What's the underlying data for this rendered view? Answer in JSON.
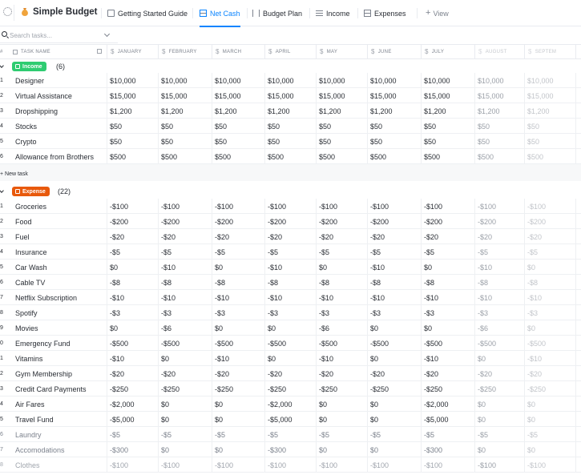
{
  "app": {
    "title": "Simple Budget"
  },
  "tabs": [
    {
      "label": "Getting Started Guide",
      "icon": "doc-icon"
    },
    {
      "label": "Net Cash",
      "icon": "table-icon",
      "active": true
    },
    {
      "label": "Budget Plan",
      "icon": "board-icon"
    },
    {
      "label": "Income",
      "icon": "list-icon"
    },
    {
      "label": "Expenses",
      "icon": "table-icon"
    }
  ],
  "view_button": {
    "label": "View"
  },
  "search": {
    "placeholder": "Search tasks..."
  },
  "columns": {
    "name_header": "TASK NAME",
    "months": [
      "JANUARY",
      "FEBRUARY",
      "MARCH",
      "APRIL",
      "MAY",
      "JUNE",
      "JULY",
      "AUGUST",
      "SEPTEM"
    ]
  },
  "colors": {
    "accent": "#0a84ff",
    "income_badge": "#2ecc71",
    "expense_badge": "#e8590c"
  },
  "income": {
    "label": "Income",
    "count": "(6)",
    "new_task": "+ New task",
    "rows": [
      {
        "n": "1",
        "name": "Designer",
        "vals": [
          "$10,000",
          "$10,000",
          "$10,000",
          "$10,000",
          "$10,000",
          "$10,000",
          "$10,000",
          "$10,000",
          "$10,000"
        ]
      },
      {
        "n": "2",
        "name": "Virtual Assistance",
        "vals": [
          "$15,000",
          "$15,000",
          "$15,000",
          "$15,000",
          "$15,000",
          "$15,000",
          "$15,000",
          "$15,000",
          "$15,000"
        ]
      },
      {
        "n": "3",
        "name": "Dropshipping",
        "vals": [
          "$1,200",
          "$1,200",
          "$1,200",
          "$1,200",
          "$1,200",
          "$1,200",
          "$1,200",
          "$1,200",
          "$1,200"
        ]
      },
      {
        "n": "4",
        "name": "Stocks",
        "vals": [
          "$50",
          "$50",
          "$50",
          "$50",
          "$50",
          "$50",
          "$50",
          "$50",
          "$50"
        ]
      },
      {
        "n": "5",
        "name": "Crypto",
        "vals": [
          "$50",
          "$50",
          "$50",
          "$50",
          "$50",
          "$50",
          "$50",
          "$50",
          "$50"
        ]
      },
      {
        "n": "6",
        "name": "Allowance from Brothers",
        "vals": [
          "$500",
          "$500",
          "$500",
          "$500",
          "$500",
          "$500",
          "$500",
          "$500",
          "$500"
        ]
      }
    ]
  },
  "expense": {
    "label": "Expense",
    "count": "(22)",
    "rows": [
      {
        "n": "1",
        "name": "Groceries",
        "vals": [
          "-$100",
          "-$100",
          "-$100",
          "-$100",
          "-$100",
          "-$100",
          "-$100",
          "-$100",
          "-$100"
        ]
      },
      {
        "n": "2",
        "name": "Food",
        "vals": [
          "-$200",
          "-$200",
          "-$200",
          "-$200",
          "-$200",
          "-$200",
          "-$200",
          "-$200",
          "-$200"
        ]
      },
      {
        "n": "3",
        "name": "Fuel",
        "vals": [
          "-$20",
          "-$20",
          "-$20",
          "-$20",
          "-$20",
          "-$20",
          "-$20",
          "-$20",
          "-$20"
        ]
      },
      {
        "n": "4",
        "name": "Insurance",
        "vals": [
          "-$5",
          "-$5",
          "-$5",
          "-$5",
          "-$5",
          "-$5",
          "-$5",
          "-$5",
          "-$5"
        ]
      },
      {
        "n": "5",
        "name": "Car Wash",
        "vals": [
          "$0",
          "-$10",
          "$0",
          "-$10",
          "$0",
          "-$10",
          "$0",
          "-$10",
          "$0"
        ]
      },
      {
        "n": "6",
        "name": "Cable TV",
        "vals": [
          "-$8",
          "-$8",
          "-$8",
          "-$8",
          "-$8",
          "-$8",
          "-$8",
          "-$8",
          "-$8"
        ]
      },
      {
        "n": "7",
        "name": "Netflix Subscription",
        "vals": [
          "-$10",
          "-$10",
          "-$10",
          "-$10",
          "-$10",
          "-$10",
          "-$10",
          "-$10",
          "-$10"
        ]
      },
      {
        "n": "8",
        "name": "Spotify",
        "vals": [
          "-$3",
          "-$3",
          "-$3",
          "-$3",
          "-$3",
          "-$3",
          "-$3",
          "-$3",
          "-$3"
        ]
      },
      {
        "n": "9",
        "name": "Movies",
        "vals": [
          "$0",
          "-$6",
          "$0",
          "$0",
          "-$6",
          "$0",
          "$0",
          "-$6",
          "$0"
        ]
      },
      {
        "n": "0",
        "name": "Emergency Fund",
        "vals": [
          "-$500",
          "-$500",
          "-$500",
          "-$500",
          "-$500",
          "-$500",
          "-$500",
          "-$500",
          "-$500"
        ]
      },
      {
        "n": "1",
        "name": "Vitamins",
        "vals": [
          "-$10",
          "$0",
          "-$10",
          "$0",
          "-$10",
          "$0",
          "-$10",
          "$0",
          "-$10"
        ]
      },
      {
        "n": "2",
        "name": "Gym Membership",
        "vals": [
          "-$20",
          "-$20",
          "-$20",
          "-$20",
          "-$20",
          "-$20",
          "-$20",
          "-$20",
          "-$20"
        ]
      },
      {
        "n": "3",
        "name": "Credit Card Payments",
        "vals": [
          "-$250",
          "-$250",
          "-$250",
          "-$250",
          "-$250",
          "-$250",
          "-$250",
          "-$250",
          "-$250"
        ]
      },
      {
        "n": "4",
        "name": "Air Fares",
        "vals": [
          "-$2,000",
          "$0",
          "$0",
          "-$2,000",
          "$0",
          "$0",
          "-$2,000",
          "$0",
          "$0"
        ]
      },
      {
        "n": "5",
        "name": "Travel Fund",
        "vals": [
          "-$5,000",
          "$0",
          "$0",
          "-$5,000",
          "$0",
          "$0",
          "-$5,000",
          "$0",
          "$0"
        ]
      },
      {
        "n": "6",
        "name": "Laundry",
        "vals": [
          "-$5",
          "-$5",
          "-$5",
          "-$5",
          "-$5",
          "-$5",
          "-$5",
          "-$5",
          "-$5"
        ]
      },
      {
        "n": "7",
        "name": "Accomodations",
        "vals": [
          "-$300",
          "$0",
          "$0",
          "-$300",
          "$0",
          "$0",
          "-$300",
          "$0",
          "$0"
        ]
      },
      {
        "n": "8",
        "name": "Clothes",
        "vals": [
          "-$100",
          "-$100",
          "-$100",
          "-$100",
          "-$100",
          "-$100",
          "-$100",
          "-$100",
          "-$100"
        ]
      }
    ]
  }
}
